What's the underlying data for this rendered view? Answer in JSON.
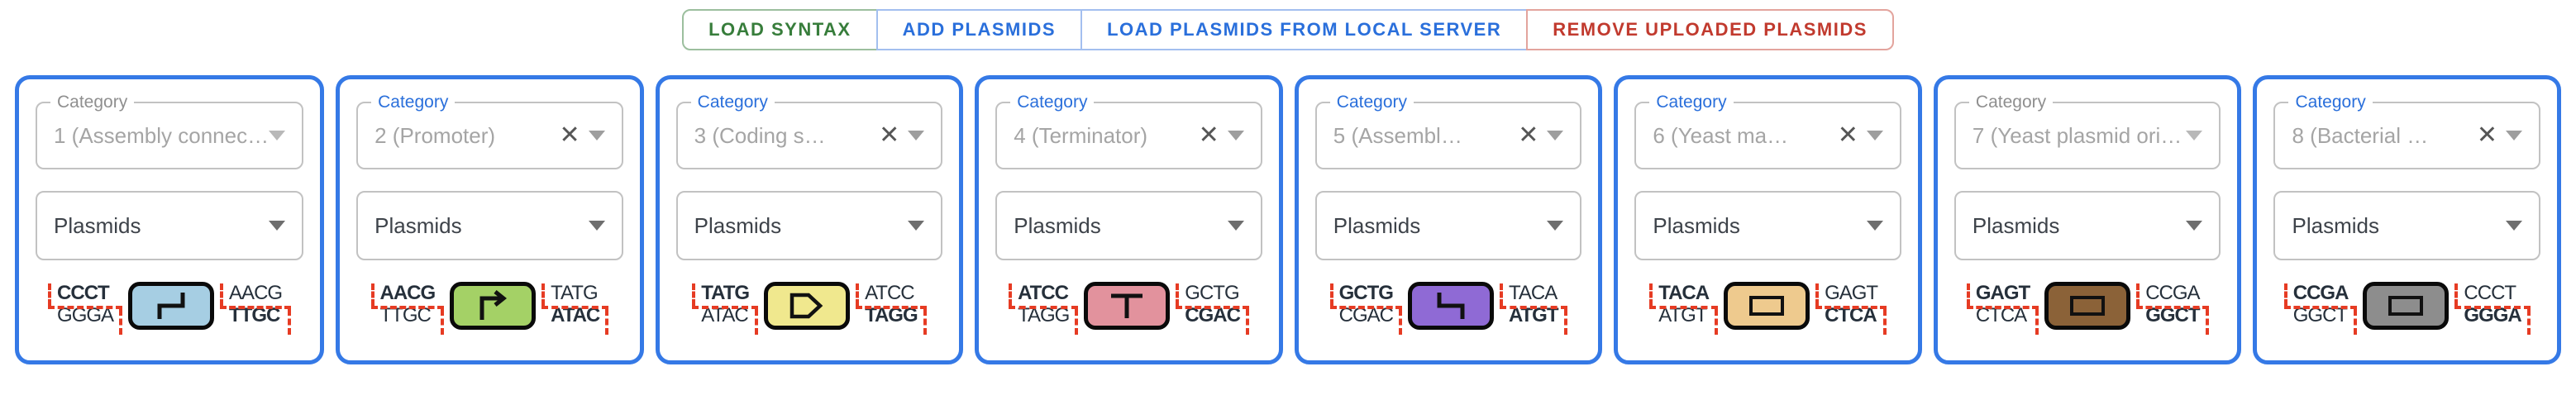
{
  "toolbar": {
    "buttons": [
      {
        "label": "LOAD SYNTAX",
        "text_color": "#377d3b",
        "border_color": "#9cbf9e"
      },
      {
        "label": "ADD PLASMIDS",
        "text_color": "#2a6fdb",
        "border_color": "#a3bfef"
      },
      {
        "label": "LOAD PLASMIDS FROM LOCAL SERVER",
        "text_color": "#2a6fdb",
        "border_color": "#a3bfef"
      },
      {
        "label": "REMOVE UPLOADED PLASMIDS",
        "text_color": "#c13a2e",
        "border_color": "#e3a49d"
      }
    ]
  },
  "colors": {
    "card_border": "#3579e6",
    "dash_red": "#e63b23",
    "glyph_border": "#0a0a0a",
    "sequence_text": "#26303b"
  },
  "cards": [
    {
      "category": {
        "label": "Category",
        "value": "1 (Assembly connec…",
        "clearable": false,
        "disabled": true
      },
      "plasmids": {
        "value": "Plasmids"
      },
      "glyph": {
        "icon": "assembly-connector-up-icon",
        "shape": "step-up",
        "fill": "#a6cee3"
      },
      "left_overhang": {
        "top": "CCCT",
        "bottom": "GGGA",
        "bold_row": "top"
      },
      "right_overhang": {
        "top": "AACG",
        "bottom": "TTGC",
        "bold_row": "bottom"
      }
    },
    {
      "category": {
        "label": "Category",
        "value": "2 (Promoter)",
        "clearable": true,
        "disabled": false
      },
      "plasmids": {
        "value": "Plasmids"
      },
      "glyph": {
        "icon": "promoter-icon",
        "shape": "promoter",
        "fill": "#a4d166"
      },
      "left_overhang": {
        "top": "AACG",
        "bottom": "TTGC",
        "bold_row": "top"
      },
      "right_overhang": {
        "top": "TATG",
        "bottom": "ATAC",
        "bold_row": "bottom"
      }
    },
    {
      "category": {
        "label": "Category",
        "value": "3 (Coding s…",
        "clearable": true,
        "disabled": false
      },
      "plasmids": {
        "value": "Plasmids"
      },
      "glyph": {
        "icon": "cds-icon",
        "shape": "cds",
        "fill": "#f0e88e"
      },
      "left_overhang": {
        "top": "TATG",
        "bottom": "ATAC",
        "bold_row": "top"
      },
      "right_overhang": {
        "top": "ATCC",
        "bottom": "TAGG",
        "bold_row": "bottom"
      }
    },
    {
      "category": {
        "label": "Category",
        "value": "4 (Terminator)",
        "clearable": true,
        "disabled": false
      },
      "plasmids": {
        "value": "Plasmids"
      },
      "glyph": {
        "icon": "terminator-icon",
        "shape": "terminator",
        "fill": "#e2929d"
      },
      "left_overhang": {
        "top": "ATCC",
        "bottom": "TAGG",
        "bold_row": "top"
      },
      "right_overhang": {
        "top": "GCTG",
        "bottom": "CGAC",
        "bold_row": "bottom"
      }
    },
    {
      "category": {
        "label": "Category",
        "value": "5 (Assembl…",
        "clearable": true,
        "disabled": false
      },
      "plasmids": {
        "value": "Plasmids"
      },
      "glyph": {
        "icon": "assembly-connector-down-icon",
        "shape": "step-down",
        "fill": "#8f6ad5"
      },
      "left_overhang": {
        "top": "GCTG",
        "bottom": "CGAC",
        "bold_row": "top"
      },
      "right_overhang": {
        "top": "TACA",
        "bottom": "ATGT",
        "bold_row": "bottom"
      }
    },
    {
      "category": {
        "label": "Category",
        "value": "6 (Yeast ma…",
        "clearable": true,
        "disabled": false
      },
      "plasmids": {
        "value": "Plasmids"
      },
      "glyph": {
        "icon": "yeast-marker-icon",
        "shape": "inner-rect",
        "fill": "#eeca8e"
      },
      "left_overhang": {
        "top": "TACA",
        "bottom": "ATGT",
        "bold_row": "top"
      },
      "right_overhang": {
        "top": "GAGT",
        "bottom": "CTCA",
        "bold_row": "bottom"
      }
    },
    {
      "category": {
        "label": "Category",
        "value": "7 (Yeast plasmid ori…",
        "clearable": false,
        "disabled": true
      },
      "plasmids": {
        "value": "Plasmids"
      },
      "glyph": {
        "icon": "yeast-ori-icon",
        "shape": "inner-rect",
        "fill": "#8b6238"
      },
      "left_overhang": {
        "top": "GAGT",
        "bottom": "CTCA",
        "bold_row": "top"
      },
      "right_overhang": {
        "top": "CCGA",
        "bottom": "GGCT",
        "bold_row": "bottom"
      }
    },
    {
      "category": {
        "label": "Category",
        "value": "8 (Bacterial …",
        "clearable": true,
        "disabled": false
      },
      "plasmids": {
        "value": "Plasmids"
      },
      "glyph": {
        "icon": "bacterial-marker-icon",
        "shape": "inner-rect",
        "fill": "#8d8d8d"
      },
      "left_overhang": {
        "top": "CCGA",
        "bottom": "GGCT",
        "bold_row": "top"
      },
      "right_overhang": {
        "top": "CCCT",
        "bottom": "GGGA",
        "bold_row": "bottom"
      }
    }
  ]
}
